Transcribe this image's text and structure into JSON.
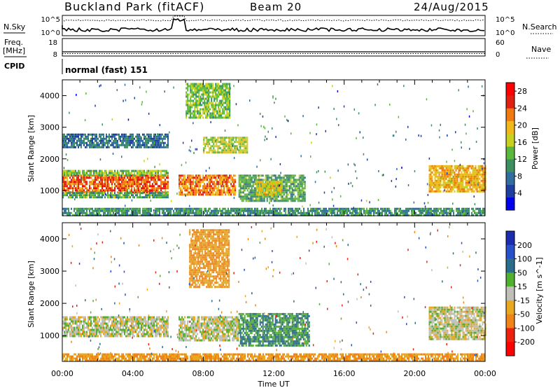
{
  "header": {
    "site": "Buckland Park (fitACF)",
    "beam": "Beam 20",
    "date": "24/Aug/2015"
  },
  "panels": {
    "nsky_label": "N.Sky",
    "nsky_ticks": [
      "10^5",
      "10^0"
    ],
    "nsearch_label": "N.Search",
    "nsearch_ticks": [
      "10^5",
      "10^0"
    ],
    "freq_label": "Freq.",
    "freq_unit": "[MHz]",
    "freq_ticks": [
      "18",
      "8"
    ],
    "nave_label": "Nave",
    "nave_ticks": [
      "60",
      "0"
    ],
    "cpid_label": "CPID",
    "cpid_value": "normal (fast) 151"
  },
  "colors": {
    "power": [
      "#0000ee",
      "#1f3fa0",
      "#2f6e9e",
      "#3c8f5e",
      "#5ab83c",
      "#c8d020",
      "#f0b818",
      "#f07a10",
      "#e02010",
      "#ff0000"
    ],
    "velocity": [
      "#1c2cb0",
      "#2850c8",
      "#2a6e8e",
      "#52b030",
      "#c0c0b8",
      "#e8a820",
      "#f08418",
      "#ee2010",
      "#ff0000"
    ]
  },
  "chart_data": [
    {
      "type": "heatmap",
      "name": "power",
      "xlabel": "Time UT",
      "ylabel": "Slant Range [km]",
      "xlim": [
        0,
        24
      ],
      "ylim": [
        200,
        4500
      ],
      "x_ticks": [
        "00:00",
        "04:00",
        "08:00",
        "12:00",
        "16:00",
        "20:00",
        "00:00"
      ],
      "y_ticks": [
        1000,
        2000,
        3000,
        4000
      ],
      "colorbar": {
        "label": "Power [dB]",
        "ticks": [
          4,
          8,
          12,
          16,
          20,
          24,
          28
        ],
        "range": [
          0,
          30
        ]
      },
      "regions": [
        {
          "t": [
            0,
            6.0
          ],
          "r": [
            950,
            1500
          ],
          "value": 24
        },
        {
          "t": [
            0,
            6.0
          ],
          "r": [
            1500,
            1650
          ],
          "value": 14
        },
        {
          "t": [
            0,
            6.0
          ],
          "r": [
            800,
            950
          ],
          "value": 12
        },
        {
          "t": [
            0,
            6.0
          ],
          "r": [
            2350,
            2800
          ],
          "value": 8
        },
        {
          "t": [
            6.6,
            9.8
          ],
          "r": [
            850,
            1500
          ],
          "value": 22
        },
        {
          "t": [
            7.0,
            9.5
          ],
          "r": [
            3300,
            4400
          ],
          "value": 14
        },
        {
          "t": [
            8.0,
            10.5
          ],
          "r": [
            2200,
            2700
          ],
          "value": 16
        },
        {
          "t": [
            10.0,
            13.8
          ],
          "r": [
            700,
            1500
          ],
          "value": 12
        },
        {
          "t": [
            11.0,
            12.5
          ],
          "r": [
            900,
            1300
          ],
          "value": 18
        },
        {
          "t": [
            20.8,
            24
          ],
          "r": [
            950,
            1800
          ],
          "value": 20
        },
        {
          "t": [
            0,
            24
          ],
          "r": [
            200,
            450
          ],
          "value": 10
        }
      ]
    },
    {
      "type": "heatmap",
      "name": "velocity",
      "xlabel": "Time UT",
      "ylabel": "Slant Range [km]",
      "xlim": [
        0,
        24
      ],
      "ylim": [
        200,
        4500
      ],
      "x_ticks": [
        "00:00",
        "04:00",
        "08:00",
        "12:00",
        "16:00",
        "20:00",
        "00:00"
      ],
      "y_ticks": [
        1000,
        2000,
        3000,
        4000
      ],
      "colorbar": {
        "label": "Velocity [m s^-1]",
        "ticks": [
          200,
          100,
          50,
          15,
          -15,
          -50,
          -100,
          -200
        ]
      },
      "regions": [
        {
          "t": [
            0,
            6.0
          ],
          "r": [
            950,
            1600
          ],
          "value": 0
        },
        {
          "t": [
            6.6,
            10.0
          ],
          "r": [
            850,
            1600
          ],
          "value": 0
        },
        {
          "t": [
            7.2,
            9.5
          ],
          "r": [
            2500,
            4300
          ],
          "value": -50
        },
        {
          "t": [
            10.0,
            14.0
          ],
          "r": [
            700,
            1700
          ],
          "value": 50
        },
        {
          "t": [
            20.8,
            24
          ],
          "r": [
            900,
            1900
          ],
          "value": 0
        },
        {
          "t": [
            0,
            24
          ],
          "r": [
            200,
            450
          ],
          "value": -50
        }
      ]
    }
  ],
  "axis_title": "Time UT"
}
